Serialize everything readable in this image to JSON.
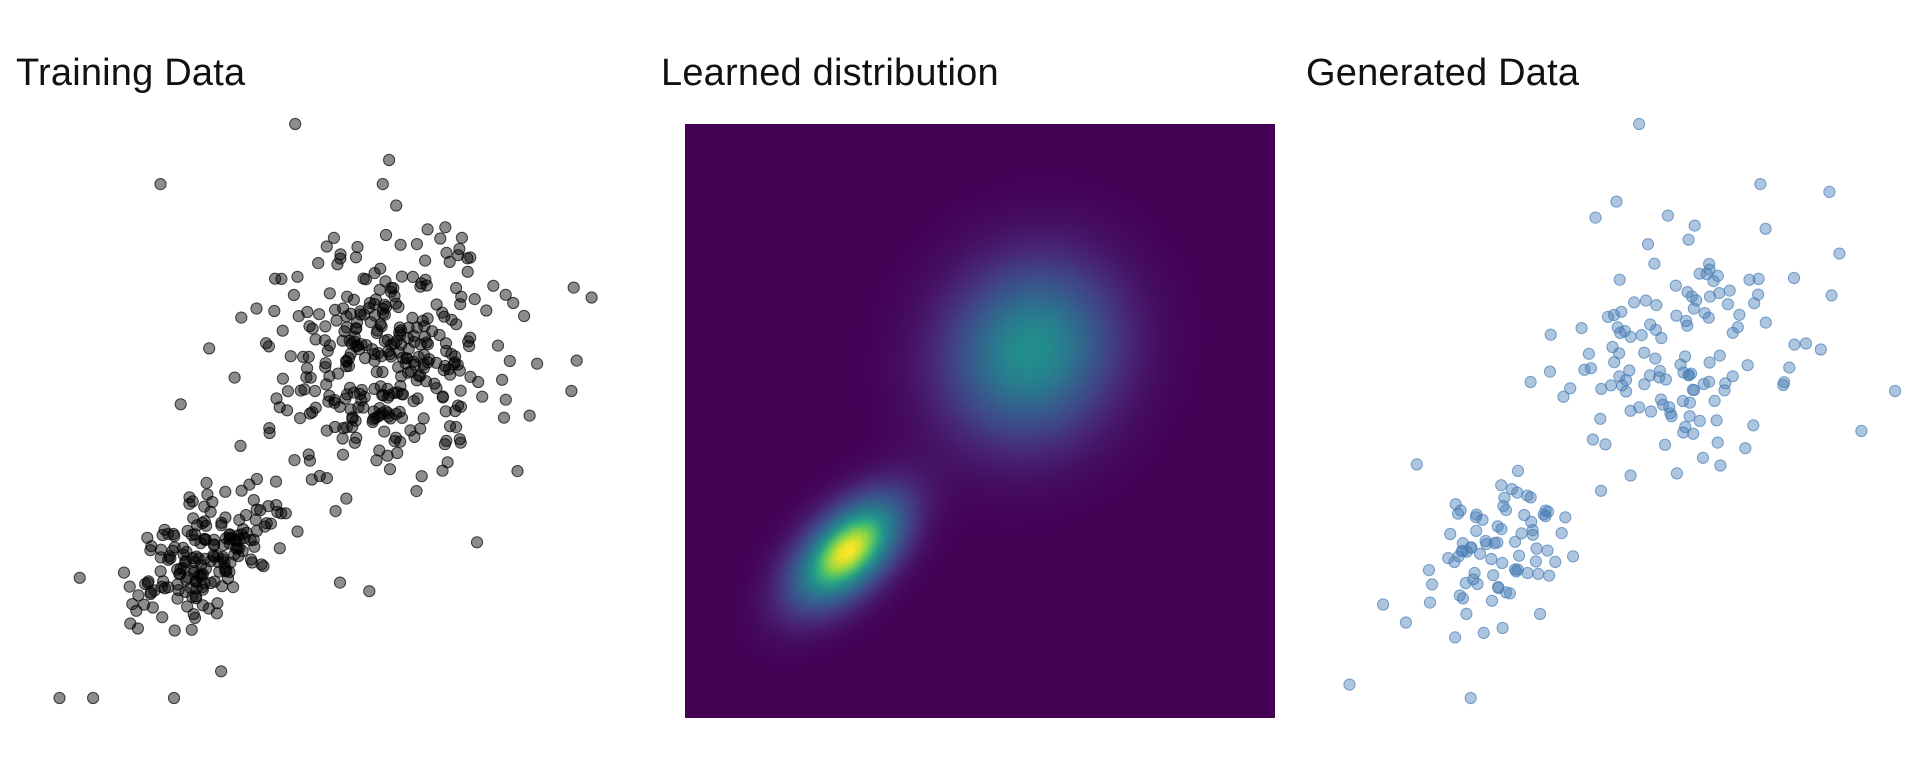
{
  "figure": {
    "titles": [
      "Training Data",
      "Learned distribution",
      "Generated Data"
    ]
  },
  "chart_data": [
    {
      "type": "scatter",
      "title": "Training Data",
      "xlabel": "",
      "ylabel": "",
      "xlim": [
        -3.5,
        5.2
      ],
      "ylim": [
        -3.5,
        5.4
      ],
      "axes_visible": false,
      "grid": false,
      "colors": {
        "point_fill": "#000000",
        "point_opacity": 0.45,
        "point_edge": "#000000"
      },
      "clusters": [
        {
          "n": 180,
          "center": [
            -1.1,
            -1.0
          ],
          "sigma": [
            0.55,
            0.55
          ],
          "correlation": 0.55
        },
        {
          "n": 330,
          "center": [
            1.6,
            2.0
          ],
          "sigma": [
            0.85,
            0.9
          ],
          "correlation": 0.1
        }
      ],
      "seed": 7,
      "values": [
        [
          -3.3,
          -3.2
        ],
        [
          -2.8,
          -3.2
        ],
        [
          -1.6,
          -3.2
        ],
        [
          -0.9,
          -2.8
        ],
        [
          -3.0,
          -1.4
        ],
        [
          -1.8,
          4.5
        ],
        [
          0.2,
          5.4
        ],
        [
          1.5,
          4.5
        ],
        [
          2.8,
          3.4
        ],
        [
          3.5,
          0.2
        ],
        [
          3.3,
          1.0
        ],
        [
          0.8,
          -0.4
        ],
        [
          2.0,
          -0.1
        ],
        [
          1.3,
          -1.6
        ],
        [
          -0.3,
          -1.2
        ],
        [
          -1.5,
          1.2
        ],
        [
          -0.7,
          1.6
        ],
        [
          -0.6,
          2.5
        ],
        [
          4.3,
          1.4
        ],
        [
          4.6,
          2.8
        ]
      ]
    },
    {
      "type": "heatmap",
      "title": "Learned distribution",
      "xlabel": "",
      "ylabel": "",
      "xlim": [
        -3.5,
        5.2
      ],
      "ylim": [
        -3.5,
        5.4
      ],
      "colormap": "viridis",
      "axes_visible": false,
      "components": [
        {
          "weight": 0.35,
          "center": [
            -1.1,
            -1.0
          ],
          "sigma": [
            0.55,
            0.55
          ],
          "correlation": 0.55
        },
        {
          "weight": 0.65,
          "center": [
            1.6,
            2.0
          ],
          "sigma": [
            0.85,
            0.9
          ],
          "correlation": 0.1
        }
      ]
    },
    {
      "type": "scatter",
      "title": "Generated Data",
      "xlabel": "",
      "ylabel": "",
      "xlim": [
        -3.5,
        5.2
      ],
      "ylim": [
        -3.5,
        5.4
      ],
      "axes_visible": false,
      "grid": false,
      "colors": {
        "point_fill": "#4a7fb5",
        "point_opacity": 0.45,
        "point_edge": "#4a7fb5"
      },
      "clusters": [
        {
          "n": 80,
          "center": [
            -1.1,
            -1.0
          ],
          "sigma": [
            0.6,
            0.6
          ],
          "correlation": 0.45
        },
        {
          "n": 130,
          "center": [
            1.6,
            2.0
          ],
          "sigma": [
            0.9,
            0.9
          ],
          "correlation": 0.1
        }
      ],
      "seed": 21,
      "values": [
        [
          -3.3,
          -3.0
        ],
        [
          -1.5,
          -3.2
        ],
        [
          1.0,
          5.4
        ],
        [
          2.8,
          4.5
        ],
        [
          4.8,
          1.4
        ],
        [
          -1.0,
          -0.2
        ],
        [
          0.5,
          0.6
        ],
        [
          4.3,
          0.8
        ],
        [
          -2.3,
          0.3
        ],
        [
          -2.8,
          -1.8
        ]
      ]
    }
  ]
}
